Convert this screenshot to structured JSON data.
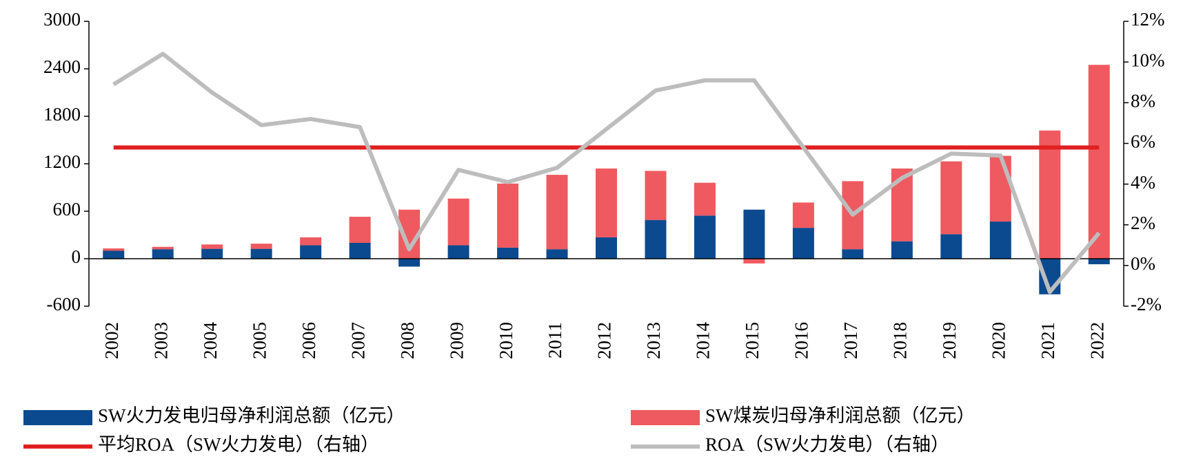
{
  "chart_data": {
    "type": "bar",
    "categories": [
      "2002",
      "2003",
      "2004",
      "2005",
      "2006",
      "2007",
      "2008",
      "2009",
      "2010",
      "2011",
      "2012",
      "2013",
      "2014",
      "2015",
      "2016",
      "2017",
      "2018",
      "2019",
      "2020",
      "2021",
      "2022"
    ],
    "stacked": true,
    "series": [
      {
        "name": "SW火力发电归母净利润总额（亿元）",
        "color": "#0b4a8f",
        "type": "bar",
        "values": [
          100,
          120,
          125,
          125,
          170,
          200,
          -100,
          170,
          140,
          120,
          270,
          490,
          545,
          620,
          390,
          120,
          220,
          310,
          470,
          -450,
          -70
        ]
      },
      {
        "name": "SW煤炭归母净利润总额（亿元）",
        "color": "#ee5a5f",
        "type": "bar",
        "values": [
          30,
          30,
          55,
          65,
          100,
          330,
          620,
          590,
          810,
          940,
          870,
          620,
          415,
          -60,
          320,
          860,
          920,
          920,
          830,
          1620,
          2450
        ]
      },
      {
        "name": "平均ROA（SW火力发电）（右轴）",
        "color": "#e02020",
        "type": "line",
        "axis": "y2",
        "values": [
          5.8,
          5.8,
          5.8,
          5.8,
          5.8,
          5.8,
          5.8,
          5.8,
          5.8,
          5.8,
          5.8,
          5.8,
          5.8,
          5.8,
          5.8,
          5.8,
          5.8,
          5.8,
          5.8,
          5.8,
          5.8
        ]
      },
      {
        "name": "ROA（SW火力发电）（右轴）",
        "color": "#bdbdbd",
        "type": "line",
        "axis": "y2",
        "values": [
          8.9,
          10.4,
          8.5,
          6.9,
          7.2,
          6.8,
          0.8,
          4.7,
          4.1,
          4.8,
          6.7,
          8.6,
          9.1,
          9.1,
          5.8,
          2.5,
          4.3,
          5.5,
          5.4,
          -1.3,
          1.6
        ]
      }
    ],
    "ylim": [
      -600,
      3000
    ],
    "yticks": [
      -600,
      0,
      600,
      1200,
      1800,
      2400,
      3000
    ],
    "y2lim": [
      -2,
      12
    ],
    "y2ticks": [
      {
        "value": -2,
        "label": "-2%"
      },
      {
        "value": 0,
        "label": "0%"
      },
      {
        "value": 2,
        "label": "2%"
      },
      {
        "value": 4,
        "label": "4%"
      },
      {
        "value": 6,
        "label": "6%"
      },
      {
        "value": 8,
        "label": "8%"
      },
      {
        "value": 10,
        "label": "10%"
      },
      {
        "value": 12,
        "label": "12%"
      }
    ],
    "legend": "bottom"
  }
}
